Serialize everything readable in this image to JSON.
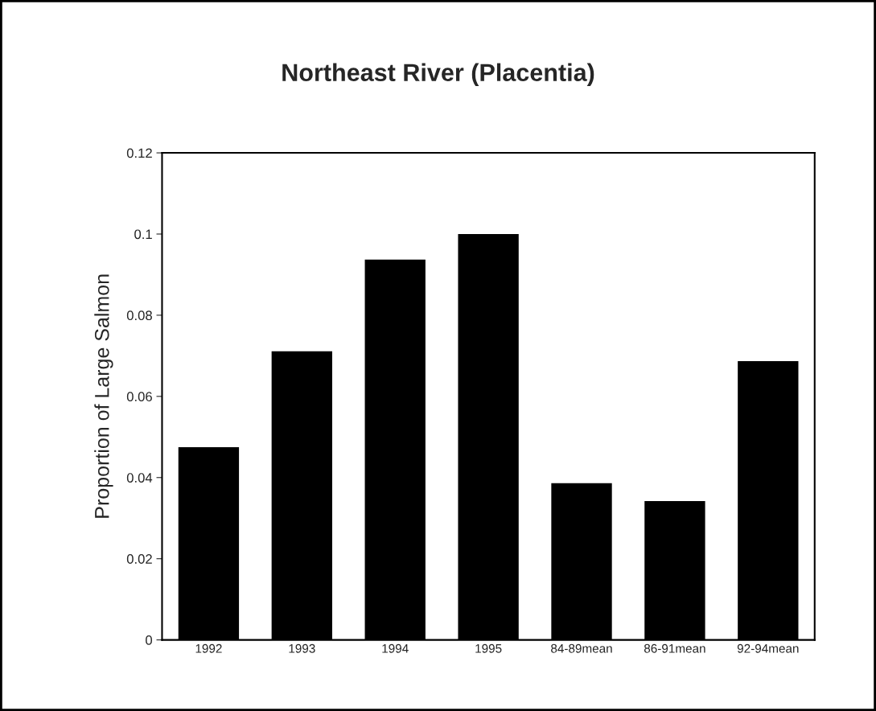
{
  "chart_data": {
    "type": "bar",
    "title": "Northeast River (Placentia)",
    "ylabel": "Proportion of Large Salmon",
    "categories": [
      "1992",
      "1993",
      "1994",
      "1995",
      "84-89mean",
      "86-91mean",
      "92-94mean"
    ],
    "values": [
      0.0475,
      0.0711,
      0.0937,
      0.1,
      0.0386,
      0.0342,
      0.0687
    ],
    "color": "#000000",
    "ylim": [
      0,
      0.12
    ],
    "yticks": [
      0,
      0.02,
      0.04,
      0.06,
      0.08,
      0.1,
      0.12
    ],
    "grid": false
  }
}
